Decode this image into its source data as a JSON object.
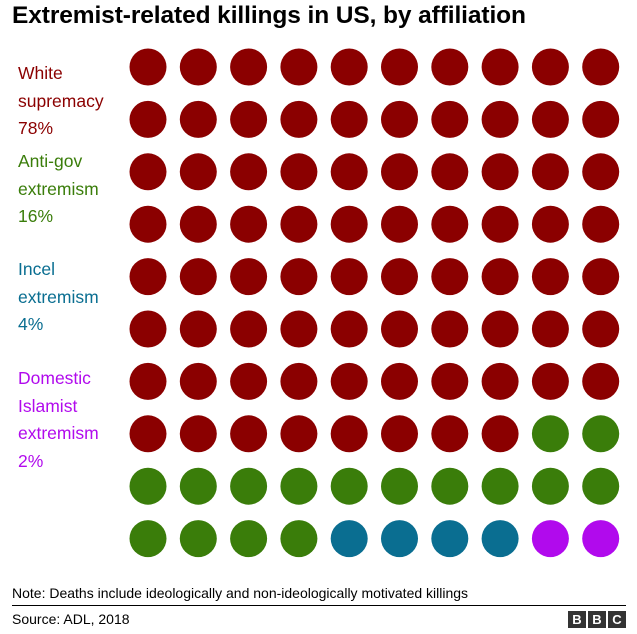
{
  "chart_data": {
    "type": "waffle",
    "title": "Extremist-related killings in US, by affiliation",
    "units": "percent of killings",
    "total_dots": 100,
    "grid": {
      "rows": 10,
      "columns": 10
    },
    "categories": [
      {
        "name_lines": [
          "White",
          "supremacy"
        ],
        "value_label": "78%",
        "value": 78,
        "color": "#8b0000"
      },
      {
        "name_lines": [
          "Anti-gov",
          "extremism"
        ],
        "value_label": "16%",
        "value": 16,
        "color": "#3a7d0a"
      },
      {
        "name_lines": [
          "Incel",
          "extremism"
        ],
        "value_label": "4%",
        "value": 4,
        "color": "#0a6e91"
      },
      {
        "name_lines": [
          "Domestic",
          "Islamist",
          "extremism"
        ],
        "value_label": "2%",
        "value": 2,
        "color": "#b10aed"
      }
    ]
  },
  "footer": {
    "note": "Note: Deaths include ideologically and non-ideologically motivated killings",
    "source": "Source: ADL, 2018",
    "logo_letters": [
      "B",
      "B",
      "C"
    ]
  }
}
